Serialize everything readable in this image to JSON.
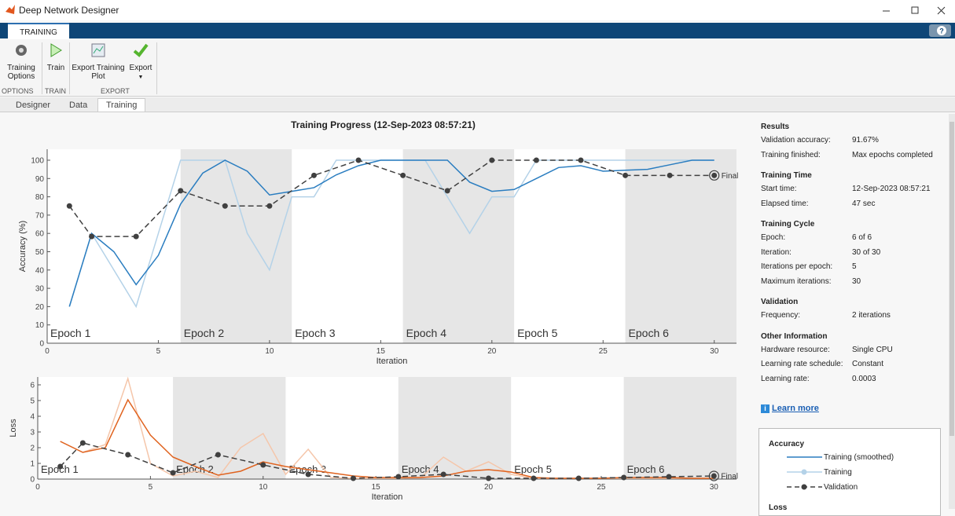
{
  "window": {
    "title": "Deep Network Designer"
  },
  "ribbon": {
    "tab": "TRAINING",
    "buttons": [
      {
        "label": "Training Options"
      },
      {
        "label": "Train"
      },
      {
        "label": "Export Training Plot"
      },
      {
        "label": "Export"
      }
    ],
    "sections": [
      "OPTIONS",
      "TRAIN",
      "EXPORT"
    ]
  },
  "doc_tabs": [
    "Designer",
    "Data",
    "Training"
  ],
  "plot_title": "Training Progress (12-Sep-2023 08:57:21)",
  "accuracy_chart": {
    "type": "line",
    "ylabel": "Accuracy (%)",
    "xlabel": "Iteration",
    "xlim": [
      0,
      31
    ],
    "ylim": [
      0,
      106
    ],
    "xticks": [
      0,
      5,
      10,
      15,
      20,
      25,
      30
    ],
    "yticks": [
      0,
      10,
      20,
      30,
      40,
      50,
      60,
      70,
      80,
      90,
      100
    ],
    "epochs": [
      {
        "label": "Epoch 1",
        "start": 0,
        "end": 6
      },
      {
        "label": "Epoch 2",
        "start": 6,
        "end": 11
      },
      {
        "label": "Epoch 3",
        "start": 11,
        "end": 16
      },
      {
        "label": "Epoch 4",
        "start": 16,
        "end": 21
      },
      {
        "label": "Epoch 5",
        "start": 21,
        "end": 26
      },
      {
        "label": "Epoch 6",
        "start": 26,
        "end": 31
      }
    ],
    "final_label": "Final",
    "series": [
      {
        "name": "Training",
        "color": "#b4d2e8",
        "style": "solid",
        "markers": false,
        "x": [
          1,
          2,
          3,
          4,
          5,
          6,
          7,
          8,
          9,
          10,
          11,
          12,
          13,
          14,
          15,
          16,
          17,
          18,
          19,
          20,
          21,
          22,
          23,
          24,
          25,
          26,
          27,
          28,
          29,
          30
        ],
        "values": [
          20,
          60,
          40,
          20,
          60,
          100,
          100,
          100,
          60,
          40,
          80,
          80,
          100,
          100,
          100,
          100,
          100,
          80,
          60,
          80,
          80,
          100,
          100,
          100,
          100,
          100,
          100,
          100,
          100,
          100
        ]
      },
      {
        "name": "Training (smoothed)",
        "color": "#2a7dc0",
        "style": "solid",
        "markers": false,
        "x": [
          1,
          2,
          3,
          4,
          5,
          6,
          7,
          8,
          9,
          10,
          11,
          12,
          13,
          14,
          15,
          16,
          17,
          18,
          19,
          20,
          21,
          22,
          23,
          24,
          25,
          26,
          27,
          28,
          29,
          30
        ],
        "values": [
          20,
          60,
          50,
          32,
          48,
          76,
          93,
          100,
          94,
          81,
          83,
          85,
          92,
          97,
          100,
          100,
          100,
          100,
          88,
          83,
          84,
          90,
          96,
          97,
          94,
          94.5,
          95,
          97.5,
          100,
          100
        ]
      },
      {
        "name": "Validation",
        "color": "#404040",
        "style": "dashed",
        "markers": true,
        "x": [
          1,
          2,
          4,
          6,
          8,
          10,
          12,
          14,
          16,
          18,
          20,
          22,
          24,
          26,
          28,
          30
        ],
        "values": [
          75,
          58.3,
          58.3,
          83.3,
          75,
          75,
          91.7,
          100,
          91.7,
          83.3,
          100,
          100,
          100,
          91.7,
          91.7,
          91.7
        ]
      }
    ]
  },
  "loss_chart": {
    "type": "line",
    "ylabel": "Loss",
    "xlabel": "Iteration",
    "xlim": [
      0,
      31
    ],
    "ylim": [
      0,
      6.5
    ],
    "xticks": [
      0,
      5,
      10,
      15,
      20,
      25,
      30
    ],
    "yticks": [
      0,
      1,
      2,
      3,
      4,
      5,
      6
    ],
    "epochs": [
      {
        "label": "Epoch 1",
        "start": 0,
        "end": 6
      },
      {
        "label": "Epoch 2",
        "start": 6,
        "end": 11
      },
      {
        "label": "Epoch 3",
        "start": 11,
        "end": 16
      },
      {
        "label": "Epoch 4",
        "start": 16,
        "end": 21
      },
      {
        "label": "Epoch 5",
        "start": 21,
        "end": 26
      },
      {
        "label": "Epoch 6",
        "start": 26,
        "end": 31
      }
    ],
    "final_label": "Final",
    "series": [
      {
        "name": "Training",
        "color": "#f5c6aa",
        "style": "solid",
        "markers": false,
        "x": [
          1,
          2,
          3,
          4,
          5,
          6,
          7,
          8,
          9,
          10,
          11,
          12,
          13,
          14,
          15,
          16,
          17,
          18,
          19,
          20,
          21,
          22,
          23,
          24,
          25,
          26,
          27,
          28,
          29,
          30
        ],
        "values": [
          2.4,
          1.7,
          2.2,
          6.4,
          1.0,
          0.2,
          0.5,
          0.1,
          2.0,
          2.9,
          0.3,
          1.9,
          0.1,
          0.05,
          0.05,
          0.05,
          0.1,
          1.4,
          0.5,
          1.1,
          0.3,
          0.05,
          0.05,
          0.05,
          0.05,
          0.05,
          0.05,
          0.05,
          0.05,
          0.05
        ]
      },
      {
        "name": "Training (smoothed)",
        "color": "#e0631f",
        "style": "solid",
        "markers": false,
        "x": [
          1,
          2,
          3,
          4,
          5,
          6,
          7,
          8,
          9,
          10,
          11,
          12,
          13,
          14,
          15,
          16,
          17,
          18,
          19,
          20,
          21,
          22,
          23,
          24,
          25,
          26,
          27,
          28,
          29,
          30
        ],
        "values": [
          2.4,
          1.7,
          2.0,
          5.05,
          2.8,
          1.4,
          0.8,
          0.25,
          0.5,
          1.1,
          0.8,
          0.6,
          0.4,
          0.2,
          0.1,
          0.1,
          0.1,
          0.2,
          0.5,
          0.6,
          0.45,
          0.1,
          0.05,
          0.05,
          0.05,
          0.1,
          0.1,
          0.1,
          0.05,
          0.05
        ]
      },
      {
        "name": "Validation",
        "color": "#404040",
        "style": "dashed",
        "markers": true,
        "x": [
          1,
          2,
          4,
          6,
          8,
          10,
          12,
          14,
          16,
          18,
          20,
          22,
          24,
          26,
          28,
          30
        ],
        "values": [
          0.8,
          2.3,
          1.55,
          0.4,
          1.55,
          0.9,
          0.3,
          0.05,
          0.15,
          0.3,
          0.05,
          0.05,
          0.05,
          0.1,
          0.15,
          0.2
        ]
      }
    ]
  },
  "panel": {
    "sections": [
      {
        "heading": "Results",
        "rows": [
          [
            "Validation accuracy:",
            "91.67%"
          ],
          [
            "Training finished:",
            "Max epochs completed"
          ]
        ]
      },
      {
        "heading": "Training Time",
        "rows": [
          [
            "Start time:",
            "12-Sep-2023 08:57:21"
          ],
          [
            "Elapsed time:",
            "47 sec"
          ]
        ]
      },
      {
        "heading": "Training Cycle",
        "rows": [
          [
            "Epoch:",
            "6 of 6"
          ],
          [
            "Iteration:",
            "30 of 30"
          ],
          [
            "Iterations per epoch:",
            "5"
          ],
          [
            "Maximum iterations:",
            "30"
          ]
        ]
      },
      {
        "heading": "Validation",
        "rows": [
          [
            "Frequency:",
            "2 iterations"
          ]
        ]
      },
      {
        "heading": "Other Information",
        "rows": [
          [
            "Hardware resource:",
            "Single CPU"
          ],
          [
            "Learning rate schedule:",
            "Constant"
          ],
          [
            "Learning rate:",
            "0.0003"
          ]
        ]
      }
    ],
    "learn_more": "Learn more",
    "legend": {
      "accuracy_heading": "Accuracy",
      "entries": [
        "Training (smoothed)",
        "Training",
        "Validation"
      ],
      "loss_heading": "Loss"
    }
  }
}
